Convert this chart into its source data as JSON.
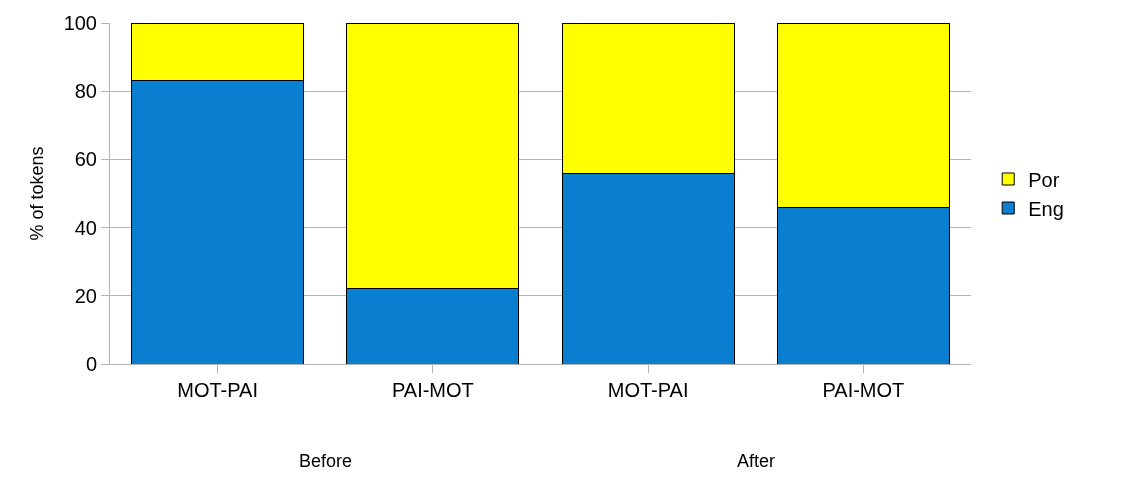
{
  "chart_data": {
    "type": "bar",
    "stacked": true,
    "ylabel": "% of tokens",
    "categories": [
      "MOT-PAI",
      "PAI-MOT",
      "MOT-PAI",
      "PAI-MOT"
    ],
    "series": [
      {
        "name": "Eng",
        "color": "#0a7fd0",
        "values": [
          83,
          22,
          56,
          46
        ]
      },
      {
        "name": "Por",
        "color": "#ffff00",
        "values": [
          17,
          78,
          44,
          54
        ]
      }
    ],
    "ylim": [
      0,
      100
    ],
    "yticks": [
      0,
      20,
      40,
      60,
      80,
      100
    ],
    "grid": "y",
    "legend": "right",
    "annotations": [
      "Before",
      "After"
    ]
  }
}
